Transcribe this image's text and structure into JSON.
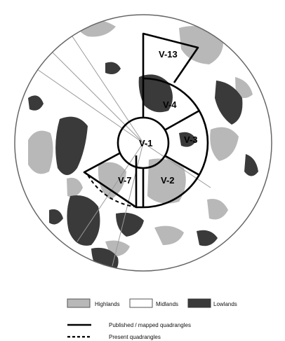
{
  "colors": {
    "highlands": "#b8b8b8",
    "midlands": "#ffffff",
    "lowlands": "#3a3a3a",
    "boundary": "#000000",
    "globe_outline": "#666666"
  },
  "quadrangles": [
    {
      "id": "V-1",
      "label": "V-1",
      "status": "published"
    },
    {
      "id": "V-2",
      "label": "V-2",
      "status": "published"
    },
    {
      "id": "V-3",
      "label": "V-3",
      "status": "published"
    },
    {
      "id": "V-4",
      "label": "V-4",
      "status": "published"
    },
    {
      "id": "V-7",
      "label": "V-7",
      "status": "published"
    },
    {
      "id": "V-13",
      "label": "V-13",
      "status": "published"
    }
  ],
  "legend": {
    "highlands": {
      "label": "Highlands",
      "icon": "highlands-swatch"
    },
    "midlands": {
      "label": "Midlands",
      "icon": "midlands-swatch"
    },
    "lowlands": {
      "label": "Lowlands",
      "icon": "lowlands-swatch"
    },
    "published": {
      "label": "Published / mapped quadrangles",
      "icon": "solid-line"
    },
    "present": {
      "label": "Present quadrangles",
      "icon": "dashed-line"
    }
  }
}
